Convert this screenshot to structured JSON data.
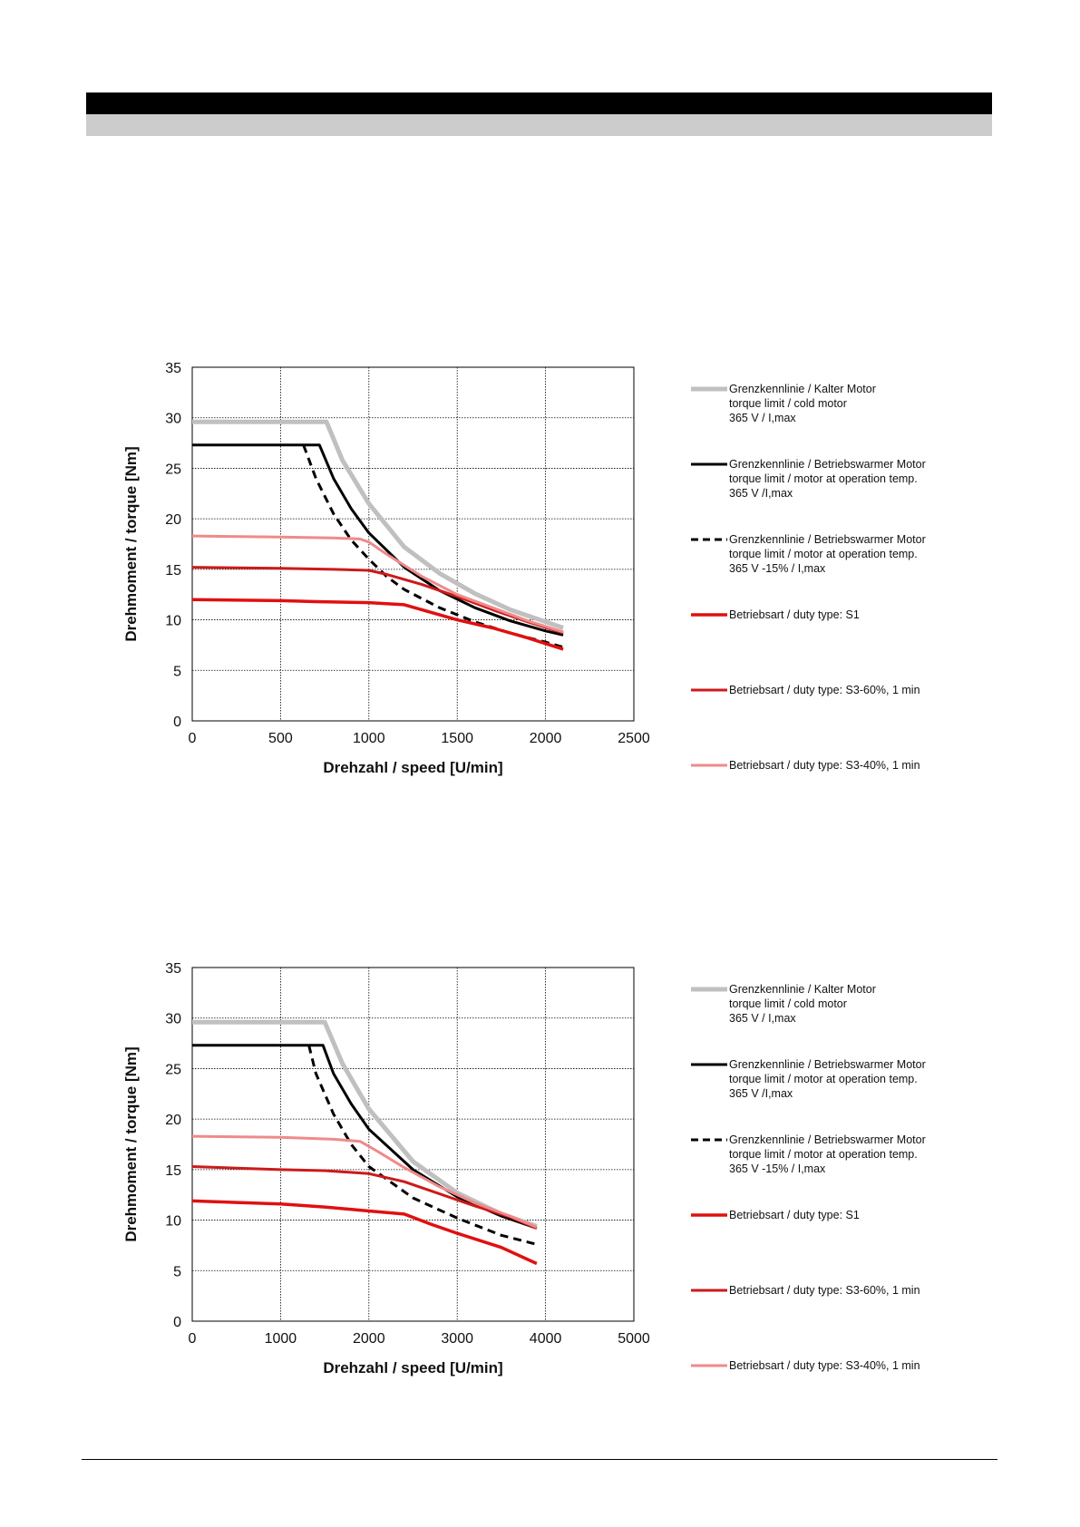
{
  "chart_data": [
    {
      "type": "line",
      "xlabel": "Drehzahl / speed [U/min]",
      "ylabel": "Drehmoment / torque [Nm]",
      "xlim": [
        0,
        2500
      ],
      "ylim": [
        0,
        35
      ],
      "xticks": [
        0,
        500,
        1000,
        1500,
        2000,
        2500
      ],
      "yticks": [
        0,
        5,
        10,
        15,
        20,
        25,
        30,
        35
      ],
      "grid": true,
      "legend_position": "right",
      "series": [
        {
          "name": [
            "Grenzkennlinie / Kalter Motor",
            "torque limit / cold  motor",
            "365 V / I,max"
          ],
          "color": "#c0c0c0",
          "style": "solid",
          "width": 5,
          "points": [
            [
              0,
              29.6
            ],
            [
              760,
              29.6
            ],
            [
              850,
              25.8
            ],
            [
              1000,
              21.5
            ],
            [
              1200,
              17.2
            ],
            [
              1400,
              14.6
            ],
            [
              1600,
              12.6
            ],
            [
              1800,
              11.0
            ],
            [
              2000,
              9.8
            ],
            [
              2100,
              9.2
            ]
          ]
        },
        {
          "name": [
            "Grenzkennlinie / Betriebswarmer Motor",
            "torque limit / motor at operation temp.",
            "365 V /I,max"
          ],
          "color": "#000000",
          "style": "solid",
          "width": 3,
          "points": [
            [
              0,
              27.3
            ],
            [
              720,
              27.3
            ],
            [
              800,
              24.0
            ],
            [
              900,
              21.0
            ],
            [
              1000,
              18.6
            ],
            [
              1200,
              15.2
            ],
            [
              1400,
              12.9
            ],
            [
              1600,
              11.2
            ],
            [
              1800,
              9.9
            ],
            [
              2000,
              8.9
            ],
            [
              2100,
              8.5
            ]
          ]
        },
        {
          "name": [
            "Grenzkennlinie / Betriebswarmer Motor",
            "torque limit / motor at operation temp.",
            "365 V  -15% / I,max"
          ],
          "color": "#000000",
          "style": "dashed",
          "width": 3,
          "points": [
            [
              630,
              27.3
            ],
            [
              700,
              24.0
            ],
            [
              800,
              20.5
            ],
            [
              900,
              17.9
            ],
            [
              1000,
              16.0
            ],
            [
              1100,
              14.3
            ],
            [
              1200,
              13.0
            ],
            [
              1400,
              11.2
            ],
            [
              1600,
              9.8
            ],
            [
              1800,
              8.7
            ],
            [
              2000,
              7.8
            ],
            [
              2100,
              7.3
            ]
          ]
        },
        {
          "name": [
            "Betriebsart / duty type: S1"
          ],
          "color": "#e01010",
          "style": "solid",
          "width": 3.5,
          "points": [
            [
              0,
              12.0
            ],
            [
              500,
              11.9
            ],
            [
              700,
              11.8
            ],
            [
              1000,
              11.7
            ],
            [
              1200,
              11.5
            ],
            [
              1300,
              11.0
            ],
            [
              1500,
              10.0
            ],
            [
              1700,
              9.2
            ],
            [
              1900,
              8.2
            ],
            [
              2100,
              7.1
            ]
          ]
        },
        {
          "name": [
            "Betriebsart / duty type: S3-60%, 1 min"
          ],
          "color": "#cc1a1a",
          "style": "solid",
          "width": 3,
          "points": [
            [
              0,
              15.2
            ],
            [
              500,
              15.1
            ],
            [
              800,
              15.0
            ],
            [
              1000,
              14.9
            ],
            [
              1100,
              14.5
            ],
            [
              1300,
              13.5
            ],
            [
              1500,
              12.3
            ],
            [
              1700,
              11.0
            ],
            [
              1900,
              9.8
            ],
            [
              2100,
              8.7
            ]
          ]
        },
        {
          "name": [
            "Betriebsart / duty type: S3-40%, 1 min"
          ],
          "color": "#ef8a8a",
          "style": "solid",
          "width": 3,
          "points": [
            [
              0,
              18.3
            ],
            [
              500,
              18.2
            ],
            [
              800,
              18.1
            ],
            [
              950,
              18.0
            ],
            [
              1000,
              17.7
            ],
            [
              1100,
              16.5
            ],
            [
              1300,
              14.3
            ],
            [
              1500,
              12.5
            ],
            [
              1700,
              11.2
            ],
            [
              1900,
              9.9
            ],
            [
              2100,
              8.8
            ]
          ]
        }
      ]
    },
    {
      "type": "line",
      "xlabel": "Drehzahl / speed [U/min]",
      "ylabel": "Drehmoment / torque [Nm]",
      "xlim": [
        0,
        5000
      ],
      "ylim": [
        0,
        35
      ],
      "xticks": [
        0,
        1000,
        2000,
        3000,
        4000,
        5000
      ],
      "yticks": [
        0,
        5,
        10,
        15,
        20,
        25,
        30,
        35
      ],
      "grid": true,
      "legend_position": "right",
      "series": [
        {
          "name": [
            "Grenzkennlinie / Kalter Motor",
            "torque limit / cold  motor",
            "365 V / I,max"
          ],
          "color": "#c0c0c0",
          "style": "solid",
          "width": 5,
          "points": [
            [
              0,
              29.6
            ],
            [
              1500,
              29.6
            ],
            [
              1700,
              25.5
            ],
            [
              2000,
              21.0
            ],
            [
              2500,
              15.8
            ],
            [
              3000,
              12.7
            ],
            [
              3500,
              10.6
            ],
            [
              3900,
              9.4
            ]
          ]
        },
        {
          "name": [
            "Grenzkennlinie / Betriebswarmer Motor",
            "torque limit / motor at operation temp.",
            "365 V /I,max"
          ],
          "color": "#000000",
          "style": "solid",
          "width": 3,
          "points": [
            [
              0,
              27.3
            ],
            [
              1480,
              27.3
            ],
            [
              1600,
              24.5
            ],
            [
              1800,
              21.5
            ],
            [
              2000,
              19.0
            ],
            [
              2500,
              15.0
            ],
            [
              3000,
              12.3
            ],
            [
              3500,
              10.4
            ],
            [
              3900,
              9.2
            ]
          ]
        },
        {
          "name": [
            "Grenzkennlinie / Betriebswarmer Motor",
            "torque limit / motor at operation temp.",
            "365 V  -15% / I,max"
          ],
          "color": "#000000",
          "style": "dashed",
          "width": 3,
          "points": [
            [
              1320,
              27.3
            ],
            [
              1400,
              24.5
            ],
            [
              1600,
              20.5
            ],
            [
              1800,
              17.5
            ],
            [
              2000,
              15.3
            ],
            [
              2500,
              12.2
            ],
            [
              3000,
              10.2
            ],
            [
              3500,
              8.5
            ],
            [
              3900,
              7.6
            ]
          ]
        },
        {
          "name": [
            "Betriebsart / duty type: S1"
          ],
          "color": "#e01010",
          "style": "solid",
          "width": 3.5,
          "points": [
            [
              0,
              11.9
            ],
            [
              1000,
              11.6
            ],
            [
              1500,
              11.3
            ],
            [
              2000,
              10.9
            ],
            [
              2400,
              10.6
            ],
            [
              2700,
              9.6
            ],
            [
              3000,
              8.7
            ],
            [
              3500,
              7.3
            ],
            [
              3900,
              5.7
            ]
          ]
        },
        {
          "name": [
            "Betriebsart / duty type: S3-60%, 1 min"
          ],
          "color": "#cc1a1a",
          "style": "solid",
          "width": 3,
          "points": [
            [
              0,
              15.3
            ],
            [
              1000,
              15.0
            ],
            [
              1500,
              14.9
            ],
            [
              2000,
              14.6
            ],
            [
              2400,
              13.8
            ],
            [
              2800,
              12.6
            ],
            [
              3200,
              11.4
            ],
            [
              3600,
              10.3
            ],
            [
              3900,
              9.2
            ]
          ]
        },
        {
          "name": [
            "Betriebsart / duty type: S3-40%, 1 min"
          ],
          "color": "#ef8a8a",
          "style": "solid",
          "width": 3,
          "points": [
            [
              0,
              18.3
            ],
            [
              1000,
              18.2
            ],
            [
              1600,
              18.0
            ],
            [
              1900,
              17.8
            ],
            [
              2100,
              16.8
            ],
            [
              2400,
              15.2
            ],
            [
              2800,
              13.3
            ],
            [
              3200,
              11.7
            ],
            [
              3600,
              10.4
            ],
            [
              3900,
              9.3
            ]
          ]
        }
      ]
    }
  ]
}
